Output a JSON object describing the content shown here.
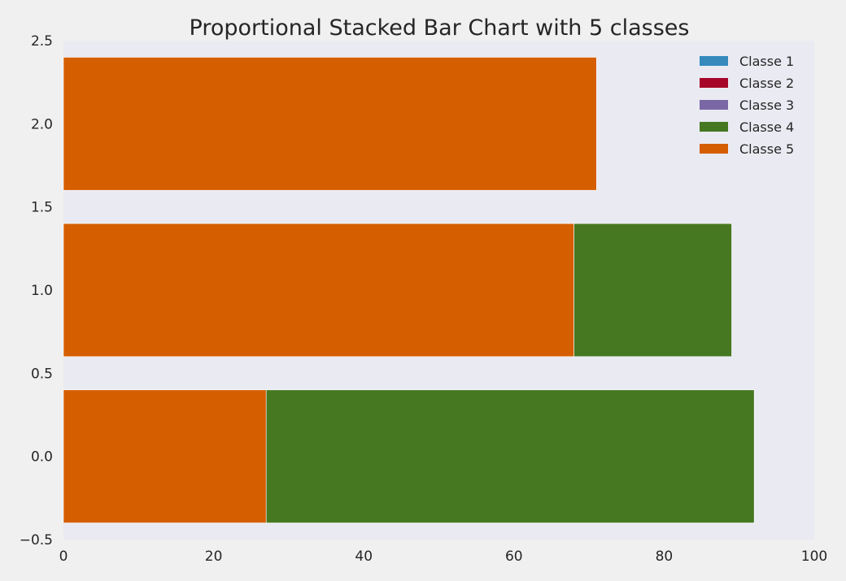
{
  "chart_data": {
    "type": "bar",
    "orientation": "horizontal",
    "stacked": true,
    "title": "Proportional Stacked Bar Chart with 5 classes",
    "xlabel": "",
    "ylabel": "",
    "xlim": [
      0,
      100
    ],
    "ylim": [
      -0.5,
      2.5
    ],
    "bar_height": 0.8,
    "grid": false,
    "legend_position": "top-right",
    "categories": [
      0,
      1,
      2
    ],
    "x_ticks": [
      "0",
      "20",
      "40",
      "60",
      "80",
      "100"
    ],
    "y_ticks": [
      "−0.5",
      "0.0",
      "0.5",
      "1.0",
      "1.5",
      "2.0",
      "2.5"
    ],
    "series": [
      {
        "name": "Classe 1",
        "color": "#348abd",
        "values": [
          0,
          0,
          0
        ]
      },
      {
        "name": "Classe 2",
        "color": "#a60628",
        "values": [
          0,
          0,
          0
        ]
      },
      {
        "name": "Classe 3",
        "color": "#7a68a6",
        "values": [
          0,
          0,
          0
        ]
      },
      {
        "name": "Classe 4",
        "color": "#467821",
        "values": [
          65,
          21,
          0
        ]
      },
      {
        "name": "Classe 5",
        "color": "#d55e00",
        "values": [
          27,
          68,
          71
        ]
      }
    ],
    "stack_order": [
      "Classe 5",
      "Classe 4",
      "Classe 3",
      "Classe 2",
      "Classe 1"
    ]
  }
}
